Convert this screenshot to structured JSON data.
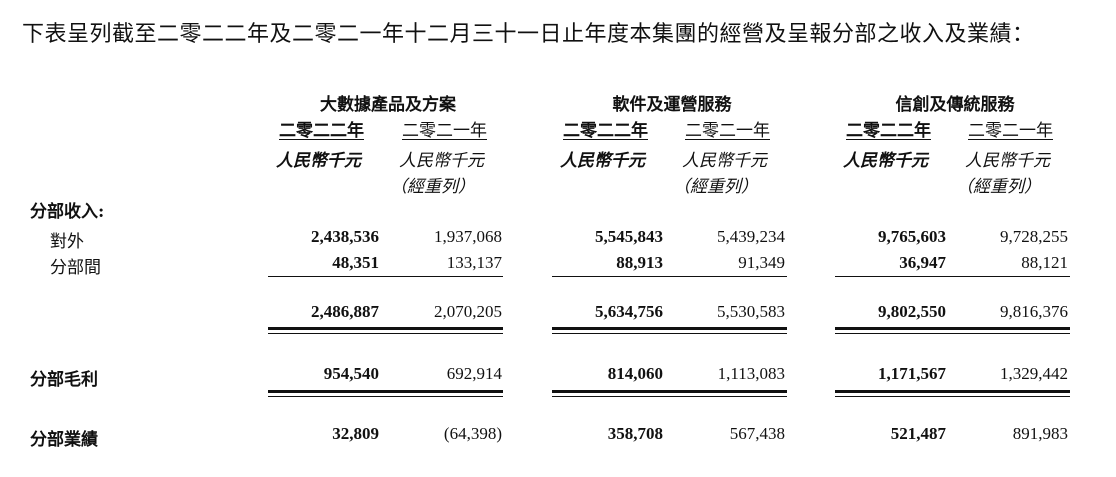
{
  "intro": "下表呈列截至二零二二年及二零二一年十二月三十一日止年度本集團的經營及呈報分部之收入及業績：",
  "segments": [
    {
      "name": "大數據產品及方案",
      "year_current": "二零二二年",
      "year_prior": "二零二一年",
      "unit_current": "人民幣千元",
      "unit_prior": "人民幣千元",
      "restated": "（經重列）"
    },
    {
      "name": "軟件及運營服務",
      "year_current": "二零二二年",
      "year_prior": "二零二一年",
      "unit_current": "人民幣千元",
      "unit_prior": "人民幣千元",
      "restated": "（經重列）"
    },
    {
      "name": "信創及傳統服務",
      "year_current": "二零二二年",
      "year_prior": "二零二一年",
      "unit_current": "人民幣千元",
      "unit_prior": "人民幣千元",
      "restated": "（經重列）"
    }
  ],
  "labels": {
    "segment_revenue": "分部收入:",
    "external": "對外",
    "inter_segment": "分部間",
    "gross_profit": "分部毛利",
    "segment_results": "分部業績"
  },
  "rows": {
    "external": [
      [
        "2,438,536",
        "1,937,068"
      ],
      [
        "5,545,843",
        "5,439,234"
      ],
      [
        "9,765,603",
        "9,728,255"
      ]
    ],
    "inter_segment": [
      [
        "48,351",
        "133,137"
      ],
      [
        "88,913",
        "91,349"
      ],
      [
        "36,947",
        "88,121"
      ]
    ],
    "revenue_total": [
      [
        "2,486,887",
        "2,070,205"
      ],
      [
        "5,634,756",
        "5,530,583"
      ],
      [
        "9,802,550",
        "9,816,376"
      ]
    ],
    "gross_profit": [
      [
        "954,540",
        "692,914"
      ],
      [
        "814,060",
        "1,113,083"
      ],
      [
        "1,171,567",
        "1,329,442"
      ]
    ],
    "segment_results": [
      [
        "32,809",
        "(64,398)"
      ],
      [
        "358,708",
        "567,438"
      ],
      [
        "521,487",
        "891,983"
      ]
    ]
  }
}
